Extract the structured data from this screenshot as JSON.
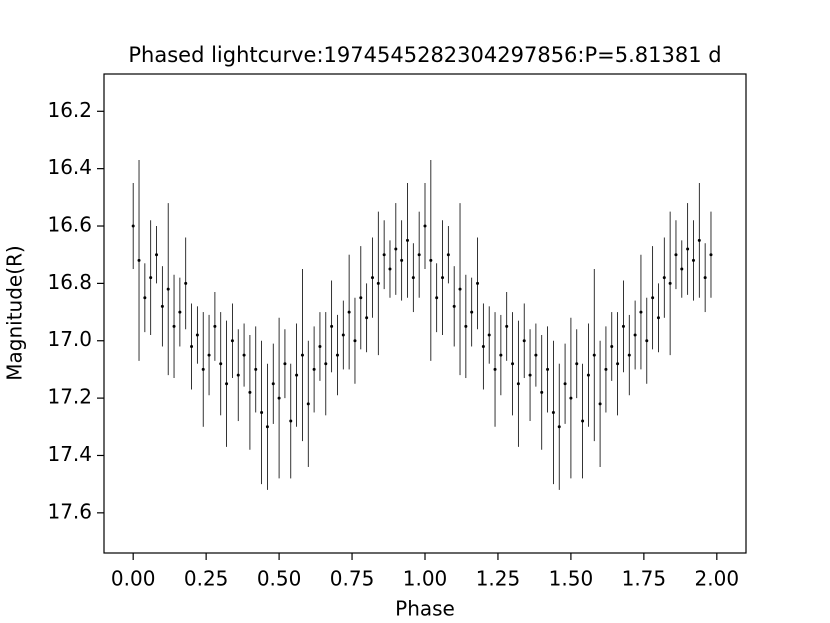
{
  "chart_data": {
    "type": "errorbar",
    "title": "Phased lightcurve:1974545282304297856:P=5.81381 d",
    "xlabel": "Phase",
    "ylabel": "Magnitude(R)",
    "xlim": [
      -0.1,
      2.1
    ],
    "ylim": [
      16.07,
      17.74
    ],
    "invert_y": true,
    "color": "#000000",
    "xticks": [
      {
        "value": 0,
        "label": "0.00"
      },
      {
        "value": 0.25,
        "label": "0.25"
      },
      {
        "value": 0.5,
        "label": "0.50"
      },
      {
        "value": 0.75,
        "label": "0.75"
      },
      {
        "value": 1,
        "label": "1.00"
      },
      {
        "value": 1.25,
        "label": "1.25"
      },
      {
        "value": 1.5,
        "label": "1.50"
      },
      {
        "value": 1.75,
        "label": "1.75"
      },
      {
        "value": 2,
        "label": "2.00"
      }
    ],
    "yticks": [
      16.2,
      16.4,
      16.6,
      16.8,
      {
        "value": 17,
        "label": "17.0"
      },
      17.2,
      17.4,
      17.6
    ],
    "x": [
      0.0,
      0.02,
      0.04,
      0.06,
      0.08,
      0.1,
      0.12,
      0.14,
      0.16,
      0.18,
      0.2,
      0.22,
      0.24,
      0.26,
      0.28,
      0.3,
      0.32,
      0.34,
      0.36,
      0.38,
      0.4,
      0.42,
      0.44,
      0.46,
      0.48,
      0.5,
      0.52,
      0.54,
      0.56,
      0.58,
      0.6,
      0.62,
      0.64,
      0.66,
      0.68,
      0.7,
      0.72,
      0.74,
      0.76,
      0.78,
      0.8,
      0.82,
      0.84,
      0.86,
      0.88,
      0.9,
      0.92,
      0.94,
      0.96,
      0.98,
      1.0,
      1.02,
      1.04,
      1.06,
      1.08,
      1.1,
      1.12,
      1.14,
      1.16,
      1.18,
      1.2,
      1.22,
      1.24,
      1.26,
      1.28,
      1.3,
      1.32,
      1.34,
      1.36,
      1.38,
      1.4,
      1.42,
      1.44,
      1.46,
      1.48,
      1.5,
      1.52,
      1.54,
      1.56,
      1.58,
      1.6,
      1.62,
      1.64,
      1.66,
      1.68,
      1.7,
      1.72,
      1.74,
      1.76,
      1.78,
      1.8,
      1.82,
      1.84,
      1.86,
      1.88,
      1.9,
      1.92,
      1.94,
      1.96,
      1.98
    ],
    "values": [
      16.6,
      16.72,
      16.85,
      16.78,
      16.7,
      16.88,
      16.82,
      16.95,
      16.9,
      16.8,
      17.02,
      16.98,
      17.1,
      17.05,
      16.95,
      17.08,
      17.15,
      17.0,
      17.12,
      17.05,
      17.18,
      17.1,
      17.25,
      17.3,
      17.15,
      17.2,
      17.08,
      17.28,
      17.12,
      17.05,
      17.22,
      17.1,
      17.02,
      17.08,
      16.95,
      17.05,
      16.98,
      16.9,
      17.0,
      16.85,
      16.92,
      16.78,
      16.8,
      16.7,
      16.75,
      16.68,
      16.72,
      16.65,
      16.78,
      16.7,
      16.6,
      16.72,
      16.85,
      16.78,
      16.7,
      16.88,
      16.82,
      16.95,
      16.9,
      16.8,
      17.02,
      16.98,
      17.1,
      17.05,
      16.95,
      17.08,
      17.15,
      17.0,
      17.12,
      17.05,
      17.18,
      17.1,
      17.25,
      17.3,
      17.15,
      17.2,
      17.08,
      17.28,
      17.12,
      17.05,
      17.22,
      17.1,
      17.02,
      17.08,
      16.95,
      17.05,
      16.98,
      16.9,
      17.0,
      16.85,
      16.92,
      16.78,
      16.8,
      16.7,
      16.75,
      16.68,
      16.72,
      16.65,
      16.78,
      16.7
    ],
    "errors": [
      0.15,
      0.35,
      0.12,
      0.2,
      0.1,
      0.14,
      0.3,
      0.18,
      0.12,
      0.16,
      0.15,
      0.1,
      0.2,
      0.14,
      0.12,
      0.18,
      0.22,
      0.13,
      0.16,
      0.11,
      0.2,
      0.15,
      0.25,
      0.22,
      0.14,
      0.28,
      0.12,
      0.2,
      0.18,
      0.3,
      0.22,
      0.15,
      0.12,
      0.18,
      0.16,
      0.14,
      0.12,
      0.2,
      0.15,
      0.18,
      0.12,
      0.14,
      0.25,
      0.12,
      0.1,
      0.16,
      0.14,
      0.2,
      0.12,
      0.15,
      0.15,
      0.35,
      0.12,
      0.2,
      0.1,
      0.14,
      0.3,
      0.18,
      0.12,
      0.16,
      0.15,
      0.1,
      0.2,
      0.14,
      0.12,
      0.18,
      0.22,
      0.13,
      0.16,
      0.11,
      0.2,
      0.15,
      0.25,
      0.22,
      0.14,
      0.28,
      0.12,
      0.2,
      0.18,
      0.3,
      0.22,
      0.15,
      0.12,
      0.18,
      0.16,
      0.14,
      0.12,
      0.2,
      0.15,
      0.18,
      0.12,
      0.14,
      0.25,
      0.12,
      0.1,
      0.16,
      0.14,
      0.2,
      0.12,
      0.15
    ]
  }
}
